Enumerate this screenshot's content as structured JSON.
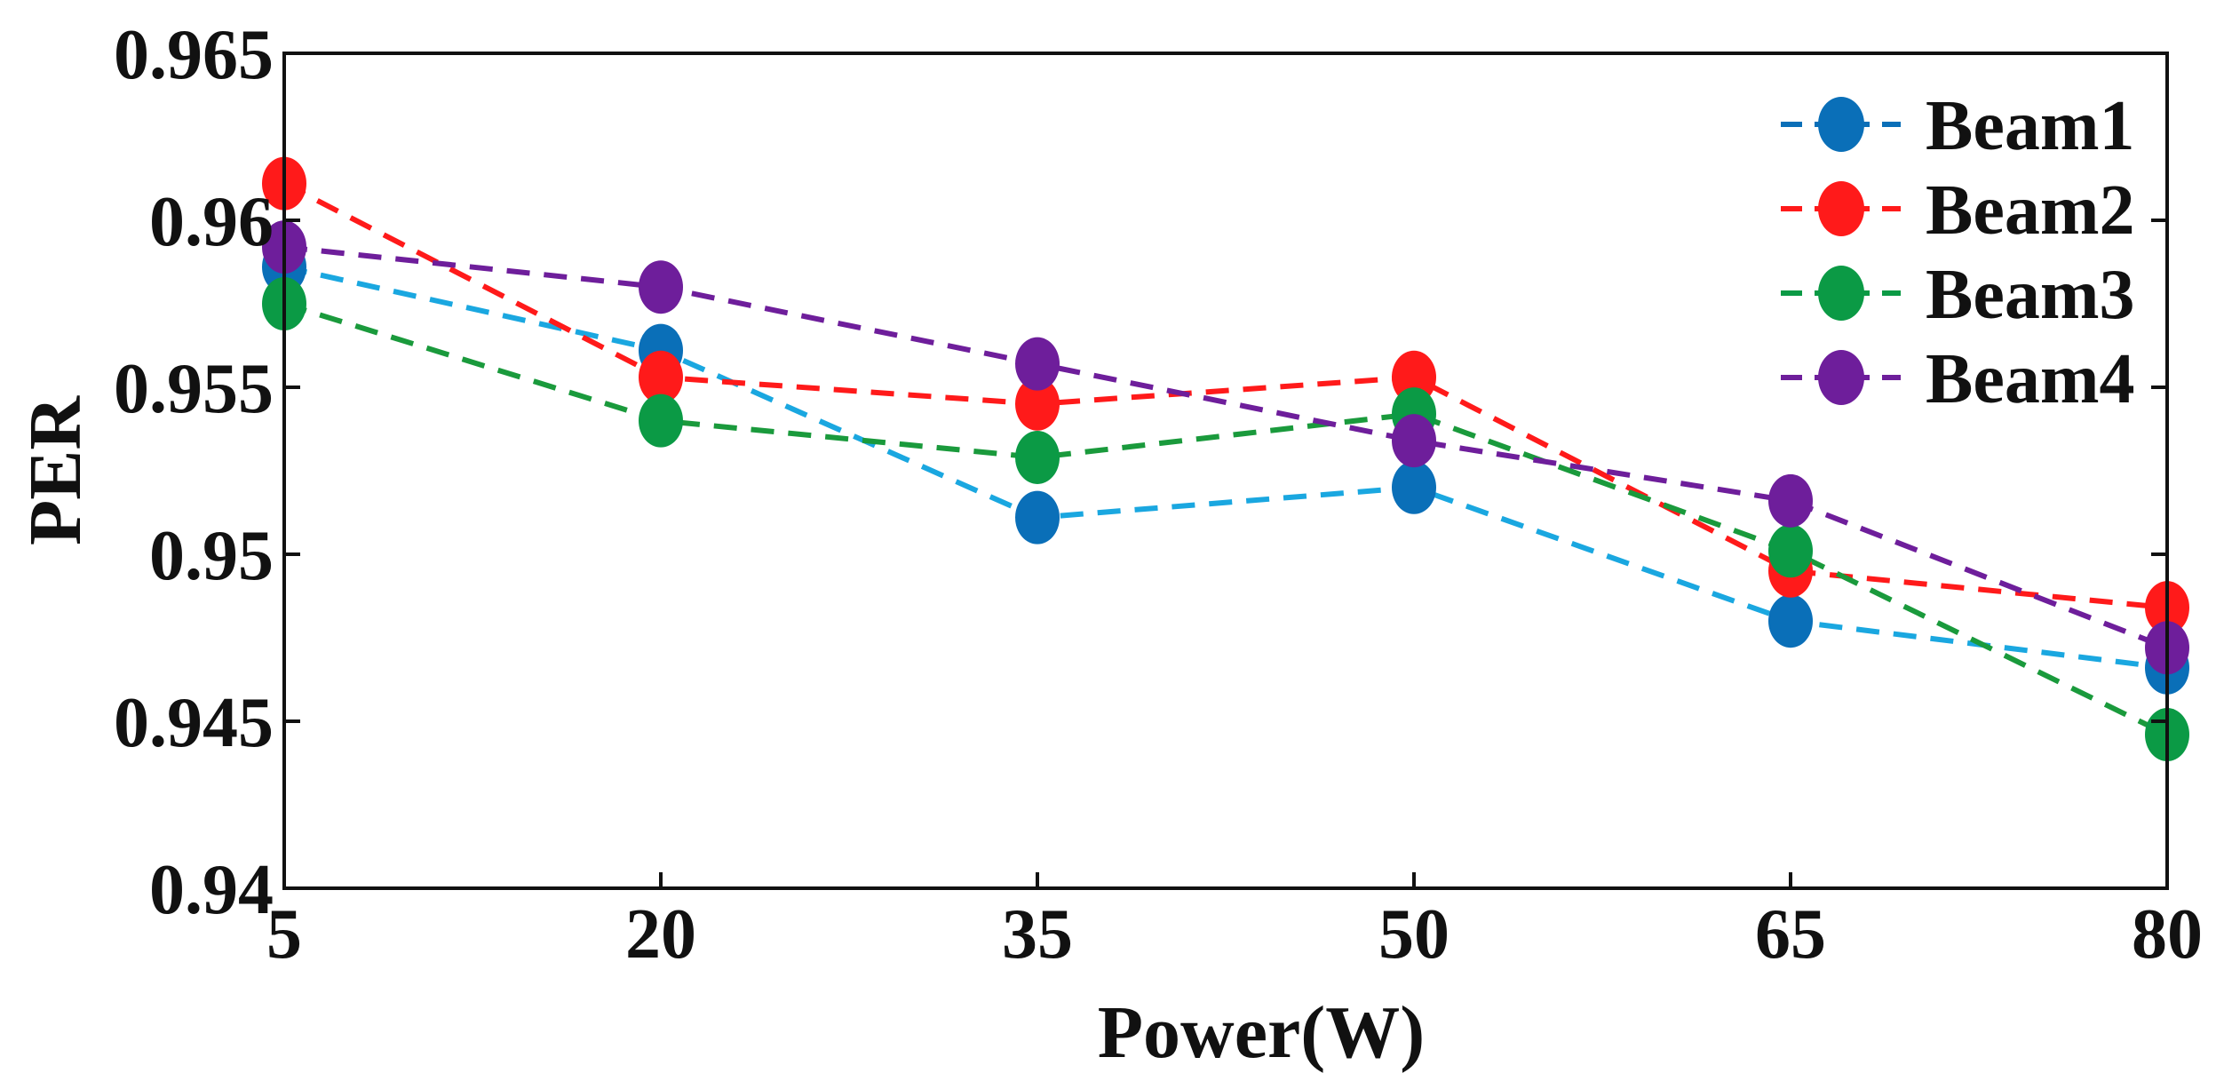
{
  "chart_data": {
    "type": "line",
    "title": "",
    "xlabel": "Power(W)",
    "ylabel": "PER",
    "x": [
      5,
      20,
      35,
      50,
      65,
      80
    ],
    "x_ticks": [
      5,
      20,
      35,
      50,
      65,
      80
    ],
    "xlim": [
      5,
      80
    ],
    "ylim": [
      0.94,
      0.965
    ],
    "y_ticks": [
      0.94,
      0.945,
      0.95,
      0.955,
      0.96,
      0.965
    ],
    "y_tick_labels": [
      "0.94",
      "0.945",
      "0.95",
      "0.955",
      "0.96",
      "0.965"
    ],
    "grid": false,
    "legend_position": "top-right",
    "series": [
      {
        "name": "Beam1",
        "values": [
          0.9586,
          0.9561,
          0.9511,
          0.952,
          0.948,
          0.9466
        ],
        "marker_color": "#0a6fb8",
        "line_color": "#1aa7e0"
      },
      {
        "name": "Beam2",
        "values": [
          0.9611,
          0.9553,
          0.9545,
          0.9553,
          0.9495,
          0.9484
        ],
        "marker_color": "#ff1a1a",
        "line_color": "#ff1a1a"
      },
      {
        "name": "Beam3",
        "values": [
          0.9575,
          0.954,
          0.9529,
          0.9542,
          0.9501,
          0.9446
        ],
        "marker_color": "#0b9a45",
        "line_color": "#1a9a3c"
      },
      {
        "name": "Beam4",
        "values": [
          0.9592,
          0.958,
          0.9557,
          0.9534,
          0.9516,
          0.9472
        ],
        "marker_color": "#6e1e9b",
        "line_color": "#6e1e9b"
      }
    ]
  }
}
